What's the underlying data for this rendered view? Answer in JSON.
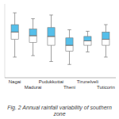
{
  "chart_data": {
    "type": "box",
    "title": "Fig. 2 Annual rainfall variability of southern zone",
    "categories": [
      "Nagai",
      "Madurai",
      "Pudukkottai",
      "Theni",
      "Tirunelveli",
      "Tuticorin"
    ],
    "boxes": [
      {
        "q1": 52,
        "median": 62,
        "q3": 72,
        "whisker_low": 28,
        "whisker_high": 88
      },
      {
        "q1": 48,
        "median": 57,
        "q3": 66,
        "whisker_low": 30,
        "whisker_high": 80
      },
      {
        "q1": 44,
        "median": 56,
        "q3": 68,
        "whisker_low": 22,
        "whisker_high": 85
      },
      {
        "q1": 36,
        "median": 44,
        "q3": 54,
        "whisker_low": 18,
        "whisker_high": 65
      },
      {
        "q1": 44,
        "median": 50,
        "q3": 56,
        "whisker_low": 35,
        "whisker_high": 63
      },
      {
        "q1": 44,
        "median": 52,
        "q3": 62,
        "whisker_low": 28,
        "whisker_high": 72
      }
    ],
    "color": "#55BFEA",
    "ylim": [
      0,
      100
    ],
    "yticks": [],
    "tick_labels": "x"
  }
}
